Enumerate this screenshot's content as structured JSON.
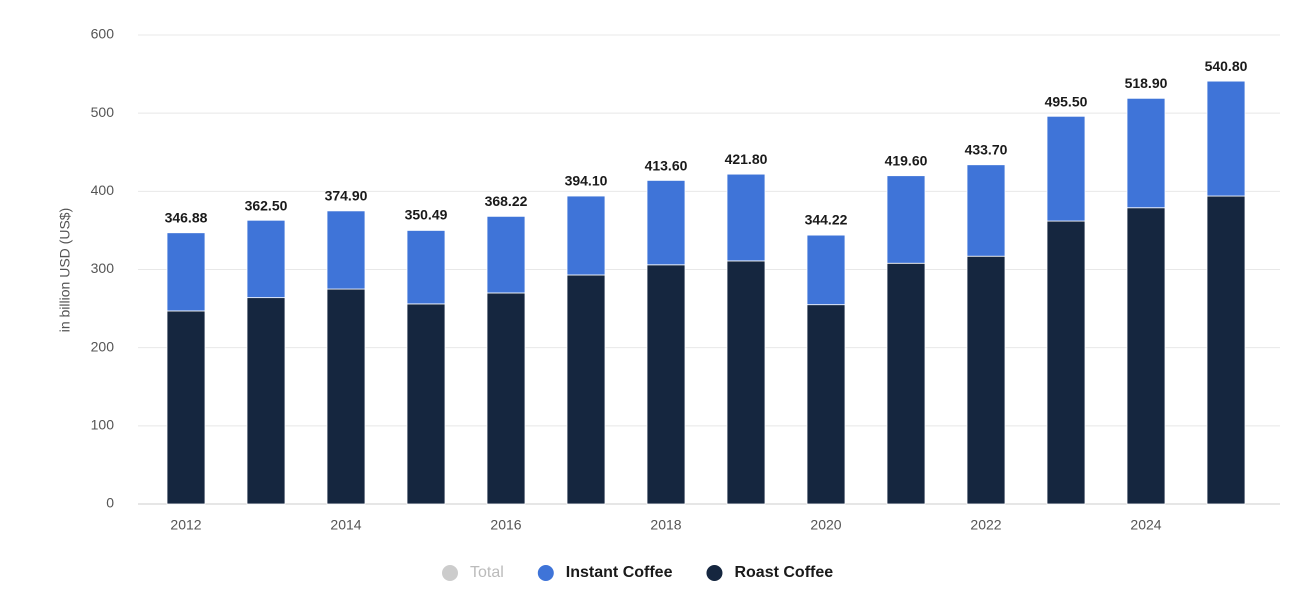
{
  "chart_data": {
    "type": "bar",
    "stacked": true,
    "y_label": "in billion USD (US$)",
    "categories": [
      "2012",
      null,
      "2014",
      null,
      "2016",
      null,
      "2018",
      null,
      "2020",
      null,
      "2022",
      null,
      "2024",
      null
    ],
    "ylim": [
      0,
      600
    ],
    "yticks": [
      0,
      100,
      200,
      300,
      400,
      500,
      600
    ],
    "grid": true,
    "series": [
      {
        "name": "Total",
        "color": "#cccccc",
        "visible": false,
        "values": [
          346.88,
          362.5,
          374.9,
          350.49,
          368.22,
          394.1,
          413.6,
          421.8,
          344.22,
          419.6,
          433.7,
          495.5,
          518.9,
          540.8
        ],
        "value_labels": [
          "346.88",
          "362.50",
          "374.90",
          "350.49",
          "368.22",
          "394.10",
          "413.60",
          "421.80",
          "344.22",
          "419.60",
          "433.70",
          "495.50",
          "518.90",
          "540.80"
        ]
      },
      {
        "name": "Instant Coffee",
        "color": "#3f74d8",
        "values": [
          100,
          99,
          100,
          94,
          98,
          101,
          108,
          111,
          89,
          112,
          117,
          134,
          140,
          147
        ]
      },
      {
        "name": "Roast Coffee",
        "color": "#15263f",
        "values": [
          247,
          264,
          275,
          256,
          270,
          293,
          306,
          311,
          255,
          308,
          317,
          362,
          379,
          394
        ]
      }
    ]
  }
}
